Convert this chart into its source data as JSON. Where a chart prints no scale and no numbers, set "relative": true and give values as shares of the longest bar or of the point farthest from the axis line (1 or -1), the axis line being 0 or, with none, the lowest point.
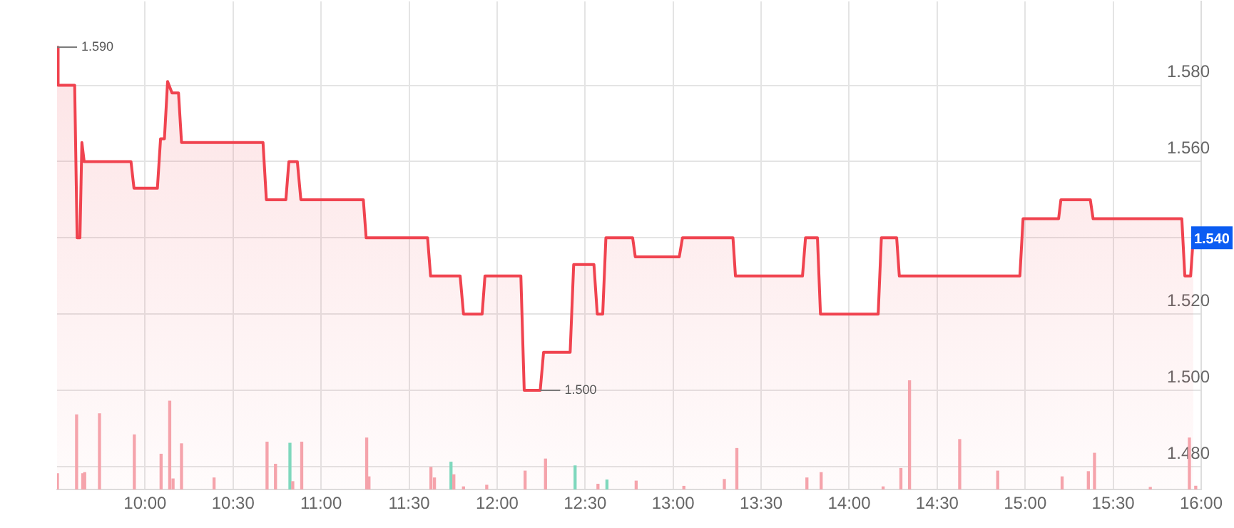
{
  "chart_data": [
    {
      "type": "area",
      "xlim": [
        9.5,
        16
      ],
      "ylim": [
        1.474,
        1.602
      ],
      "xticks": [
        {
          "value": 10,
          "label": "10:00"
        },
        {
          "value": 10.5,
          "label": "10:30"
        },
        {
          "value": 11,
          "label": "11:00"
        },
        {
          "value": 11.5,
          "label": "11:30"
        },
        {
          "value": 12,
          "label": "12:00"
        },
        {
          "value": 12.5,
          "label": "12:30"
        },
        {
          "value": 13,
          "label": "13:00"
        },
        {
          "value": 13.5,
          "label": "13:30"
        },
        {
          "value": 14,
          "label": "14:00"
        },
        {
          "value": 14.5,
          "label": "14:30"
        },
        {
          "value": 15,
          "label": "15:00"
        },
        {
          "value": 15.5,
          "label": "15:30"
        },
        {
          "value": 16,
          "label": "16:00"
        }
      ],
      "yticks": [
        {
          "value": 1.48,
          "label": "1.480"
        },
        {
          "value": 1.5,
          "label": "1.500"
        },
        {
          "value": 1.52,
          "label": "1.520"
        },
        {
          "value": 1.54,
          "label": null
        },
        {
          "value": 1.56,
          "label": "1.560"
        },
        {
          "value": 1.58,
          "label": "1.580"
        }
      ],
      "grid": true,
      "legend": false,
      "marker": "none",
      "series": [
        {
          "color": "#f0434f",
          "x": [
            9.5,
            9.506,
            9.6,
            9.614,
            9.63,
            9.641,
            9.654,
            9.92,
            9.937,
            10.07,
            10.088,
            10.11,
            10.128,
            10.153,
            10.19,
            10.207,
            10.67,
            10.689,
            10.8,
            10.817,
            10.865,
            10.885,
            11.24,
            11.256,
            11.605,
            11.622,
            11.79,
            11.809,
            11.915,
            11.931,
            12.135,
            12.154,
            12.245,
            12.264,
            12.415,
            12.435,
            12.55,
            12.569,
            12.6,
            12.618,
            12.77,
            12.785,
            13.035,
            13.053,
            13.34,
            13.354,
            13.735,
            13.752,
            13.82,
            13.837,
            14.165,
            14.183,
            14.27,
            14.285,
            14.97,
            14.988,
            15.19,
            15.203,
            15.37,
            15.386,
            15.89,
            15.907,
            15.94,
            15.955
          ],
          "values": [
            1.59,
            1.58,
            1.58,
            1.54,
            1.54,
            1.565,
            1.56,
            1.56,
            1.553,
            1.553,
            1.566,
            1.566,
            1.581,
            1.578,
            1.578,
            1.565,
            1.565,
            1.55,
            1.55,
            1.56,
            1.56,
            1.55,
            1.55,
            1.54,
            1.54,
            1.53,
            1.53,
            1.52,
            1.52,
            1.53,
            1.53,
            1.5,
            1.5,
            1.51,
            1.51,
            1.533,
            1.533,
            1.52,
            1.52,
            1.54,
            1.54,
            1.535,
            1.535,
            1.54,
            1.54,
            1.53,
            1.53,
            1.54,
            1.54,
            1.52,
            1.52,
            1.54,
            1.54,
            1.53,
            1.53,
            1.545,
            1.545,
            1.55,
            1.55,
            1.545,
            1.545,
            1.53,
            1.53,
            1.54
          ]
        }
      ],
      "annotations": [
        {
          "text": "1.590",
          "x": 9.5,
          "y": 1.59
        },
        {
          "text": "1.500",
          "x": 12.245,
          "y": 1.5
        },
        "1.540"
      ]
    },
    {
      "type": "bar",
      "relative": true,
      "xlim": [
        9.5,
        16
      ],
      "x": [
        9.502,
        9.611,
        9.646,
        9.657,
        9.741,
        9.939,
        10.091,
        10.14,
        10.159,
        10.207,
        10.392,
        10.693,
        10.741,
        10.823,
        10.839,
        10.89,
        11.259,
        11.272,
        11.624,
        11.644,
        11.738,
        11.754,
        11.809,
        11.941,
        12.159,
        12.275,
        12.443,
        12.573,
        12.624,
        12.79,
        13.061,
        13.291,
        13.362,
        13.76,
        13.841,
        14.193,
        14.294,
        14.343,
        14.628,
        14.844,
        15.21,
        15.359,
        15.394,
        15.711,
        15.933,
        15.969
      ],
      "values": [
        0.145,
        0.686,
        0.145,
        0.155,
        0.696,
        0.502,
        0.324,
        0.812,
        0.097,
        0.42,
        0.106,
        0.435,
        0.232,
        0.425,
        0.072,
        0.435,
        0.473,
        0.116,
        0.203,
        0.106,
        0.251,
        0.135,
        0.024,
        0.039,
        0.169,
        0.28,
        0.217,
        0.048,
        0.087,
        0.077,
        0.029,
        0.092,
        0.377,
        0.106,
        0.155,
        0.024,
        0.193,
        1,
        0.459,
        0.169,
        0.116,
        0.164,
        0.333,
        0.019,
        0.473,
        0.03
      ],
      "colors": [
        "#f5a3ab",
        "#f5a3ab",
        "#f5a3ab",
        "#f5a3ab",
        "#f5a3ab",
        "#f5a3ab",
        "#f5a3ab",
        "#f5a3ab",
        "#f5a3ab",
        "#f5a3ab",
        "#f5a3ab",
        "#f5a3ab",
        "#f5a3ab",
        "#7fd8bd",
        "#f5a3ab",
        "#f5a3ab",
        "#f5a3ab",
        "#f5a3ab",
        "#f5a3ab",
        "#f5a3ab",
        "#7fd8bd",
        "#f5a3ab",
        "#f5a3ab",
        "#f5a3ab",
        "#f5a3ab",
        "#f5a3ab",
        "#7fd8bd",
        "#f5a3ab",
        "#7fd8bd",
        "#f5a3ab",
        "#f5a3ab",
        "#f5a3ab",
        "#f5a3ab",
        "#f5a3ab",
        "#f5a3ab",
        "#f5a3ab",
        "#f5a3ab",
        "#f5a3ab",
        "#f5a3ab",
        "#f5a3ab",
        "#f5a3ab",
        "#f5a3ab",
        "#f5a3ab",
        "#f5a3ab",
        "#f5a3ab",
        "#f5a3ab"
      ]
    }
  ]
}
